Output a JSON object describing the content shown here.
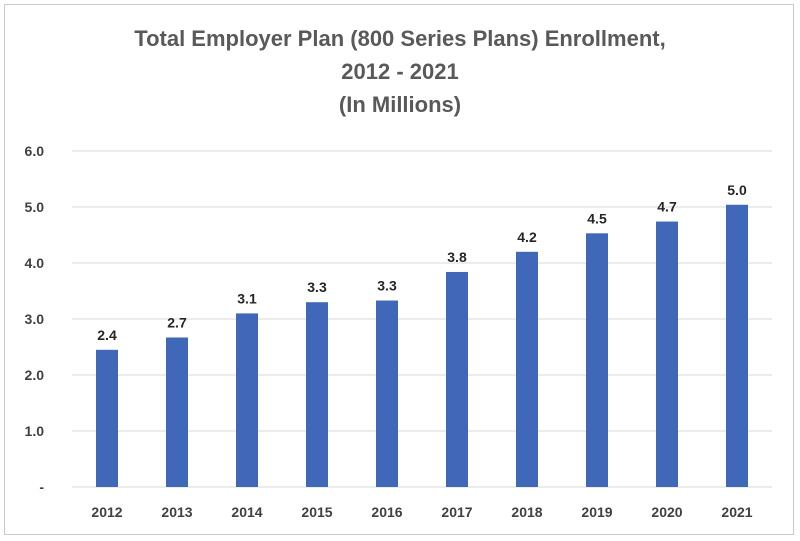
{
  "chart_data": {
    "type": "bar",
    "title_lines": [
      "Total Employer Plan (800 Series Plans) Enrollment,",
      "2012 - 2021",
      "(In Millions)"
    ],
    "categories": [
      "2012",
      "2013",
      "2014",
      "2015",
      "2016",
      "2017",
      "2018",
      "2019",
      "2020",
      "2021"
    ],
    "values": [
      2.45,
      2.67,
      3.1,
      3.3,
      3.33,
      3.84,
      4.2,
      4.53,
      4.74,
      5.04
    ],
    "data_labels": [
      "2.4",
      "2.7",
      "3.1",
      "3.3",
      "3.3",
      "3.8",
      "4.2",
      "4.5",
      "4.7",
      "5.0"
    ],
    "y_ticks": [
      "-",
      "1.0",
      "2.0",
      "3.0",
      "4.0",
      "5.0",
      "6.0"
    ],
    "ylim": [
      0,
      6
    ],
    "xlabel": "",
    "ylabel": "",
    "grid": true,
    "legend": "none",
    "colors": {
      "bar": "#4168b8",
      "grid": "#d9d9d9",
      "title": "#595959"
    }
  }
}
